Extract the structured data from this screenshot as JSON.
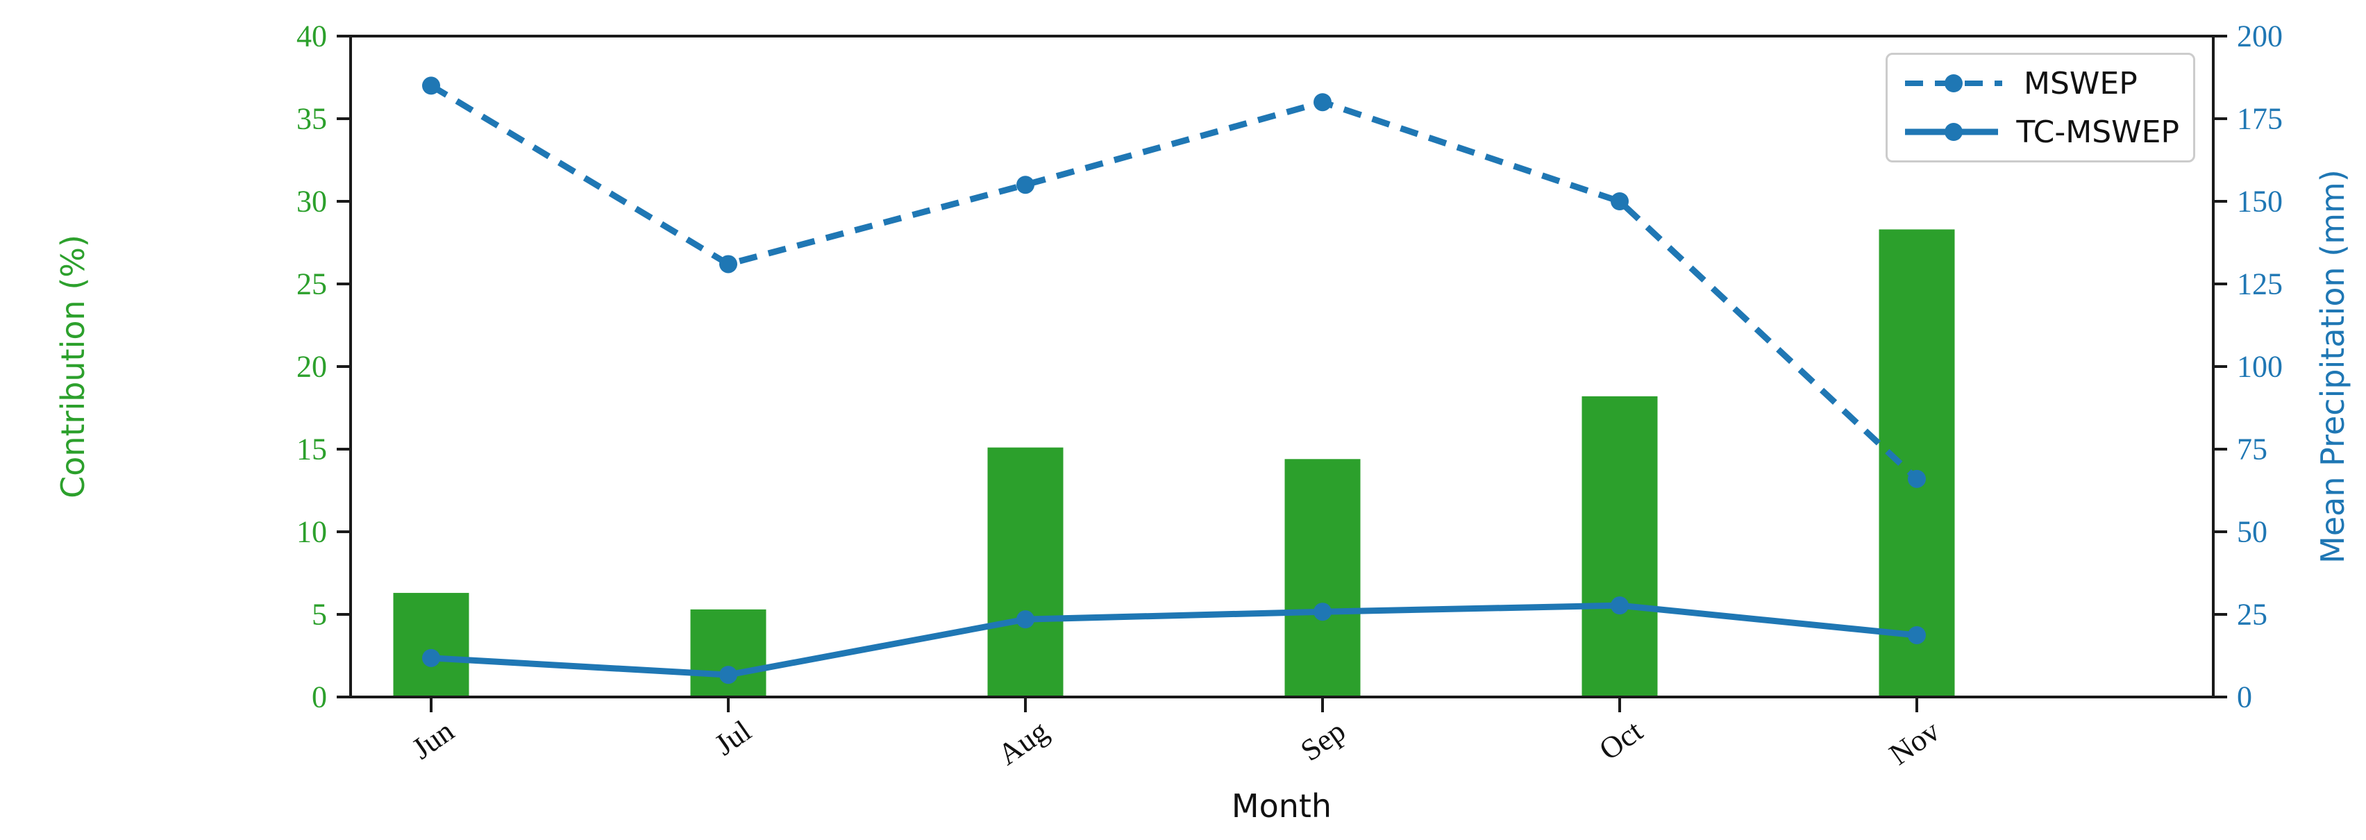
{
  "figure": {
    "background": "#ffffff"
  },
  "colors": {
    "bar_green": "#2ca02c",
    "line_blue": "#1f77b4",
    "axis_black": "#1a1a1a",
    "legend_border": "#cccccc",
    "text_black": "#111111"
  },
  "chart_data": {
    "type": "combo",
    "subtype": "bar+line, dual y-axes",
    "categories": [
      "Jun",
      "Jul",
      "Aug",
      "Sep",
      "Oct",
      "Nov"
    ],
    "bar_series": {
      "name": "Contribution",
      "axis": "left",
      "color": "#2ca02c",
      "values": [
        6.3,
        5.3,
        15.1,
        14.4,
        18.2,
        28.3
      ]
    },
    "line_series": [
      {
        "name": "MSWEP",
        "axis": "right",
        "style": "dashed",
        "marker": "circle",
        "color": "#1f77b4",
        "values": [
          185,
          131,
          155,
          180,
          150,
          66
        ]
      },
      {
        "name": "TC-MSWEP",
        "axis": "right",
        "style": "solid",
        "marker": "circle",
        "color": "#1f77b4",
        "values": [
          11.8,
          6.7,
          23.5,
          25.8,
          27.7,
          18.7
        ]
      }
    ],
    "xlabel": "Month",
    "left_axis": {
      "label": "Contribution (%)",
      "min": 0,
      "max": 40,
      "ticks": [
        0,
        5,
        10,
        15,
        20,
        25,
        30,
        35,
        40
      ],
      "color": "#2ca02c"
    },
    "right_axis": {
      "label": "Mean Precipitation (mm)",
      "min": 0,
      "max": 200,
      "ticks": [
        0,
        25,
        50,
        75,
        100,
        125,
        150,
        175,
        200
      ],
      "color": "#1f77b4"
    },
    "x_tick_rotation_deg": -35,
    "grid": false,
    "legend": {
      "position": "top-right",
      "entries": [
        "MSWEP",
        "TC-MSWEP"
      ]
    }
  }
}
